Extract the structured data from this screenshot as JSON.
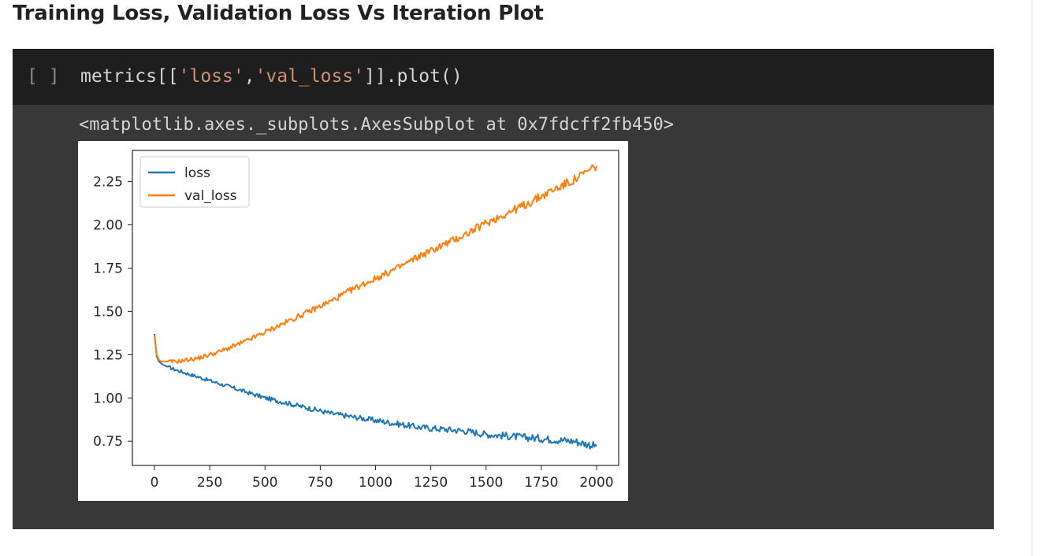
{
  "heading": "Training Loss, Validation Loss Vs Iteration Plot",
  "cell": {
    "run_button": "[ ]",
    "code": {
      "prefix": "metrics[[",
      "str1": "'loss'",
      "comma": ",",
      "str2": "'val_loss'",
      "suffix": "]].plot()"
    },
    "output_text": "<matplotlib.axes._subplots.AxesSubplot at 0x7fdcff2fb450>"
  },
  "colors": {
    "loss": "#1f77b4",
    "val_loss": "#ff7f0e",
    "cell_bg": "#383838",
    "code_bg": "#1e1e1e",
    "string": "#ce9178"
  },
  "chart_data": {
    "type": "line",
    "x_range": [
      0,
      2000
    ],
    "xlim": [
      -100,
      2100
    ],
    "ylim": [
      0.61,
      2.43
    ],
    "xticks": [
      0,
      250,
      500,
      750,
      1000,
      1250,
      1500,
      1750,
      2000
    ],
    "yticks": [
      0.75,
      1.0,
      1.25,
      1.5,
      1.75,
      2.0,
      2.25
    ],
    "xtick_labels": [
      "0",
      "250",
      "500",
      "750",
      "1000",
      "1250",
      "1500",
      "1750",
      "2000"
    ],
    "ytick_labels": [
      "0.75",
      "1.00",
      "1.25",
      "1.50",
      "1.75",
      "2.00",
      "2.25"
    ],
    "legend_position": "upper-left",
    "grid": false,
    "series": [
      {
        "name": "loss",
        "x": [
          0,
          10,
          20,
          40,
          60,
          100,
          150,
          200,
          250,
          300,
          400,
          500,
          600,
          700,
          800,
          900,
          1000,
          1100,
          1200,
          1300,
          1400,
          1500,
          1600,
          1700,
          1800,
          1900,
          2000
        ],
        "y": [
          1.37,
          1.24,
          1.21,
          1.19,
          1.18,
          1.16,
          1.14,
          1.12,
          1.1,
          1.08,
          1.04,
          1.0,
          0.97,
          0.94,
          0.91,
          0.89,
          0.87,
          0.85,
          0.83,
          0.82,
          0.81,
          0.79,
          0.78,
          0.77,
          0.76,
          0.75,
          0.72
        ]
      },
      {
        "name": "val_loss",
        "x": [
          0,
          10,
          20,
          30,
          50,
          100,
          150,
          200,
          250,
          300,
          400,
          500,
          600,
          700,
          800,
          900,
          1000,
          1100,
          1200,
          1300,
          1400,
          1500,
          1600,
          1700,
          1800,
          1900,
          2000
        ],
        "y": [
          1.36,
          1.25,
          1.22,
          1.21,
          1.21,
          1.21,
          1.22,
          1.23,
          1.25,
          1.27,
          1.32,
          1.38,
          1.44,
          1.5,
          1.56,
          1.63,
          1.69,
          1.75,
          1.82,
          1.88,
          1.94,
          2.01,
          2.07,
          2.13,
          2.2,
          2.26,
          2.34
        ]
      }
    ]
  }
}
